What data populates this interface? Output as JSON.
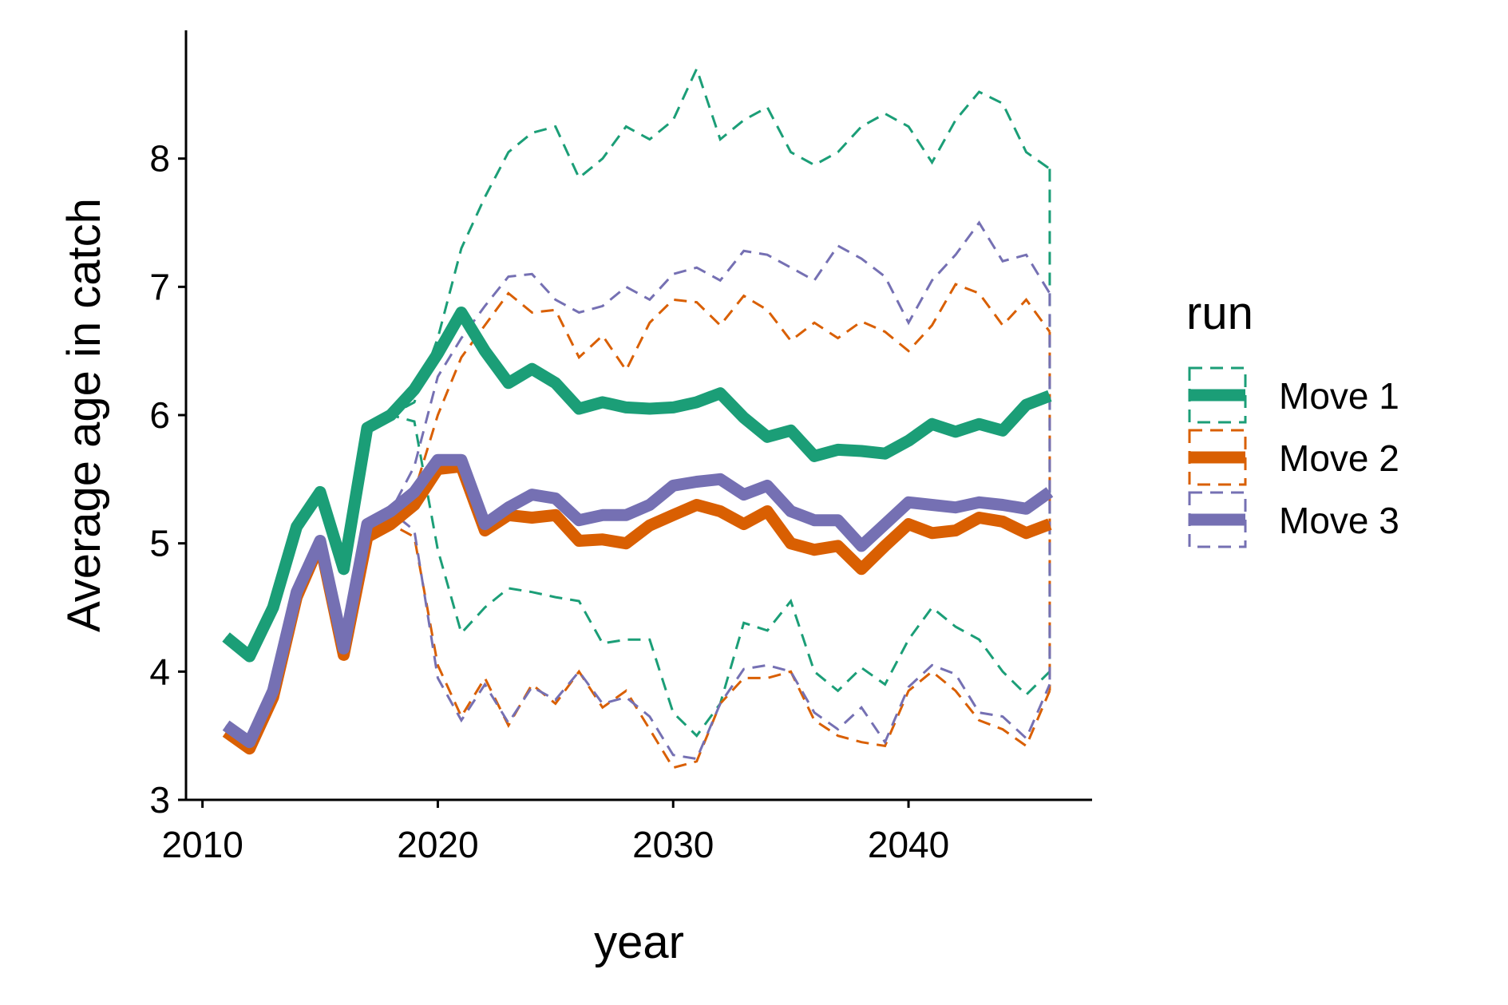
{
  "chart_data": {
    "type": "line",
    "xlabel": "year",
    "ylabel": "Average age in catch",
    "xlim": [
      2009.3,
      2047.8
    ],
    "ylim": [
      3.0,
      9.0
    ],
    "xticks": [
      2010,
      2020,
      2030,
      2040
    ],
    "yticks": [
      3,
      4,
      5,
      6,
      7,
      8
    ],
    "x": [
      2011,
      2012,
      2013,
      2014,
      2015,
      2016,
      2017,
      2018,
      2019,
      2020,
      2021,
      2022,
      2023,
      2024,
      2025,
      2026,
      2027,
      2028,
      2029,
      2030,
      2031,
      2032,
      2033,
      2034,
      2035,
      2036,
      2037,
      2038,
      2039,
      2040,
      2041,
      2042,
      2043,
      2044,
      2045,
      2046
    ],
    "legend": {
      "title": "run",
      "position": "right"
    },
    "series": [
      {
        "name": "Move 1",
        "color": "#1b9e77",
        "mean": [
          4.27,
          4.12,
          4.5,
          5.13,
          5.4,
          4.8,
          5.9,
          6.0,
          6.2,
          6.48,
          6.8,
          6.5,
          6.25,
          6.36,
          6.25,
          6.05,
          6.1,
          6.06,
          6.05,
          6.06,
          6.1,
          6.17,
          5.98,
          5.83,
          5.88,
          5.68,
          5.73,
          5.72,
          5.7,
          5.8,
          5.93,
          5.87,
          5.93,
          5.88,
          6.08,
          6.15
        ],
        "upper": [
          4.27,
          4.12,
          4.5,
          5.13,
          5.4,
          4.8,
          5.9,
          6.0,
          6.1,
          6.6,
          7.3,
          7.7,
          8.05,
          8.2,
          8.25,
          7.85,
          8.0,
          8.25,
          8.15,
          8.3,
          8.7,
          8.15,
          8.3,
          8.4,
          8.05,
          7.95,
          8.05,
          8.25,
          8.35,
          8.25,
          7.97,
          8.3,
          8.52,
          8.43,
          8.05,
          7.92
        ],
        "lower": [
          4.27,
          4.12,
          4.5,
          5.13,
          5.4,
          4.8,
          5.9,
          6.0,
          5.95,
          4.95,
          4.3,
          4.5,
          4.65,
          4.62,
          4.58,
          4.55,
          4.22,
          4.25,
          4.25,
          3.68,
          3.5,
          3.75,
          4.38,
          4.32,
          4.55,
          4.0,
          3.85,
          4.03,
          3.9,
          4.25,
          4.5,
          4.35,
          4.25,
          4.0,
          3.82,
          4.0
        ]
      },
      {
        "name": "Move 2",
        "color": "#d95f02",
        "mean": [
          3.53,
          3.4,
          3.8,
          4.58,
          5.0,
          4.13,
          5.05,
          5.15,
          5.3,
          5.58,
          5.6,
          5.1,
          5.22,
          5.2,
          5.22,
          5.02,
          5.03,
          5.0,
          5.14,
          5.22,
          5.3,
          5.25,
          5.15,
          5.25,
          5.0,
          4.95,
          4.98,
          4.8,
          4.98,
          5.15,
          5.08,
          5.1,
          5.2,
          5.17,
          5.08,
          5.15
        ],
        "upper": [
          3.53,
          3.4,
          3.8,
          4.58,
          5.0,
          4.13,
          5.05,
          5.15,
          5.4,
          6.0,
          6.45,
          6.7,
          6.95,
          6.8,
          6.82,
          6.45,
          6.62,
          6.35,
          6.72,
          6.9,
          6.88,
          6.7,
          6.93,
          6.82,
          6.58,
          6.72,
          6.6,
          6.73,
          6.65,
          6.5,
          6.7,
          7.02,
          6.95,
          6.7,
          6.9,
          6.65
        ],
        "lower": [
          3.53,
          3.4,
          3.8,
          4.58,
          5.0,
          4.13,
          5.05,
          5.15,
          5.05,
          4.05,
          3.65,
          3.95,
          3.58,
          3.9,
          3.75,
          4.0,
          3.72,
          3.85,
          3.55,
          3.25,
          3.3,
          3.75,
          3.95,
          3.95,
          4.0,
          3.62,
          3.5,
          3.45,
          3.42,
          3.85,
          4.0,
          3.85,
          3.62,
          3.55,
          3.42,
          3.85
        ]
      },
      {
        "name": "Move 3",
        "color": "#7570b3",
        "mean": [
          3.58,
          3.45,
          3.85,
          4.62,
          5.02,
          4.18,
          5.15,
          5.25,
          5.4,
          5.65,
          5.65,
          5.15,
          5.28,
          5.38,
          5.35,
          5.18,
          5.22,
          5.22,
          5.3,
          5.45,
          5.48,
          5.5,
          5.38,
          5.45,
          5.25,
          5.18,
          5.18,
          4.98,
          5.15,
          5.32,
          5.3,
          5.28,
          5.32,
          5.3,
          5.27,
          5.4
        ],
        "upper": [
          3.58,
          3.45,
          3.85,
          4.62,
          5.02,
          4.18,
          5.15,
          5.25,
          5.6,
          6.3,
          6.6,
          6.85,
          7.08,
          7.1,
          6.9,
          6.8,
          6.85,
          7.0,
          6.9,
          7.1,
          7.15,
          7.05,
          7.28,
          7.25,
          7.15,
          7.05,
          7.32,
          7.22,
          7.08,
          6.72,
          7.05,
          7.25,
          7.5,
          7.2,
          7.25,
          6.95
        ],
        "lower": [
          3.58,
          3.45,
          3.85,
          4.62,
          5.02,
          4.18,
          5.15,
          5.25,
          5.1,
          3.95,
          3.62,
          3.9,
          3.6,
          3.88,
          3.78,
          4.0,
          3.75,
          3.8,
          3.65,
          3.35,
          3.32,
          3.75,
          4.02,
          4.05,
          4.0,
          3.68,
          3.55,
          3.72,
          3.45,
          3.88,
          4.05,
          3.98,
          3.68,
          3.65,
          3.48,
          3.9
        ]
      }
    ]
  }
}
